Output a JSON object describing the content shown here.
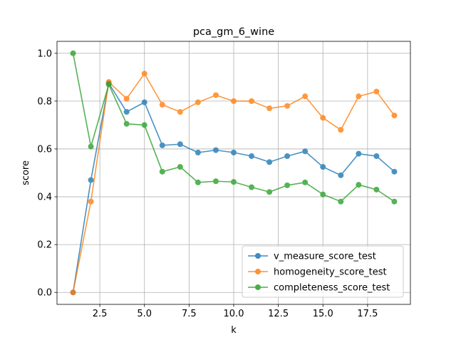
{
  "chart_data": {
    "type": "line",
    "title": "pca_gm_6_wine",
    "xlabel": "k",
    "ylabel": "score",
    "xlim": [
      0.1,
      19.9
    ],
    "ylim": [
      -0.05,
      1.05
    ],
    "xticks": [
      2.5,
      5.0,
      7.5,
      10.0,
      12.5,
      15.0,
      17.5
    ],
    "xtick_labels": [
      "2.5",
      "5.0",
      "7.5",
      "10.0",
      "12.5",
      "15.0",
      "17.5"
    ],
    "yticks": [
      0.0,
      0.2,
      0.4,
      0.6,
      0.8,
      1.0
    ],
    "ytick_labels": [
      "0.0",
      "0.2",
      "0.4",
      "0.6",
      "0.8",
      "1.0"
    ],
    "grid": true,
    "legend_position": "bottom-right",
    "x": [
      1,
      2,
      3,
      4,
      5,
      6,
      7,
      8,
      9,
      10,
      11,
      12,
      13,
      14,
      15,
      16,
      17,
      18,
      19
    ],
    "series": [
      {
        "name": "v_measure_score_test",
        "color": "#1f77b4",
        "values": [
          0.0,
          0.47,
          0.875,
          0.755,
          0.795,
          0.615,
          0.62,
          0.585,
          0.595,
          0.585,
          0.57,
          0.545,
          0.57,
          0.59,
          0.525,
          0.49,
          0.58,
          0.57,
          0.505
        ]
      },
      {
        "name": "homogeneity_score_test",
        "color": "#ff7f0e",
        "values": [
          0.0,
          0.38,
          0.88,
          0.81,
          0.915,
          0.785,
          0.755,
          0.795,
          0.825,
          0.8,
          0.8,
          0.77,
          0.78,
          0.82,
          0.73,
          0.68,
          0.82,
          0.84,
          0.74
        ]
      },
      {
        "name": "completeness_score_test",
        "color": "#2ca02c",
        "values": [
          1.0,
          0.61,
          0.87,
          0.705,
          0.7,
          0.505,
          0.525,
          0.46,
          0.465,
          0.462,
          0.44,
          0.42,
          0.448,
          0.46,
          0.41,
          0.38,
          0.45,
          0.43,
          0.38
        ]
      }
    ]
  }
}
